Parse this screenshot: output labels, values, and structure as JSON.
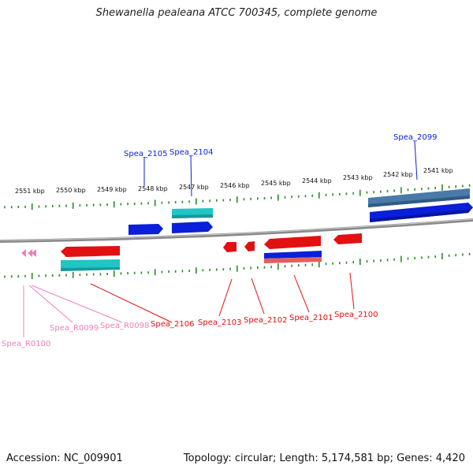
{
  "header": {
    "title": "Shewanella pealeana ATCC 700345, complete genome"
  },
  "footer": {
    "accession": "Accession: NC_009901",
    "summary": "Topology: circular; Length: 5,174,581 bp; Genes: 4,420"
  },
  "scale": {
    "ticks": [
      {
        "label": "2551 kbp"
      },
      {
        "label": "2550 kbp"
      },
      {
        "label": "2549 kbp"
      },
      {
        "label": "2548 kbp"
      },
      {
        "label": "2547 kbp"
      },
      {
        "label": "2546 kbp"
      },
      {
        "label": "2545 kbp"
      },
      {
        "label": "2544 kbp"
      },
      {
        "label": "2543 kbp"
      },
      {
        "label": "2542 kbp"
      },
      {
        "label": "2541 kbp"
      }
    ]
  },
  "genes": {
    "forward": [
      {
        "name": "Spea_2105",
        "color": "#0a1fd8"
      },
      {
        "name": "Spea_2104",
        "color": "#0a1fd8"
      },
      {
        "name": "Spea_2099",
        "color": "#0a1fd8"
      }
    ],
    "reverse": [
      {
        "name": "Spea_2106",
        "color": "#e21010"
      },
      {
        "name": "Spea_2103",
        "color": "#e21010"
      },
      {
        "name": "Spea_2102",
        "color": "#e21010"
      },
      {
        "name": "Spea_2101",
        "color": "#e21010"
      },
      {
        "name": "Spea_2100",
        "color": "#e21010"
      }
    ],
    "rna": [
      {
        "name": "Spea_R0099",
        "color": "#f080b8"
      },
      {
        "name": "Spea_R0098",
        "color": "#f080b8"
      },
      {
        "name": "Spea_R0100",
        "color": "#f080b8"
      }
    ]
  },
  "colors": {
    "cds_forward": "#0a1fd8",
    "cds_reverse": "#e21010",
    "feature_cyan": "#22c4c4",
    "feature_steel": "#4a7aa8",
    "rna": "#f080b8",
    "backbone": "#808080",
    "ticks": "#2a8a2a"
  }
}
